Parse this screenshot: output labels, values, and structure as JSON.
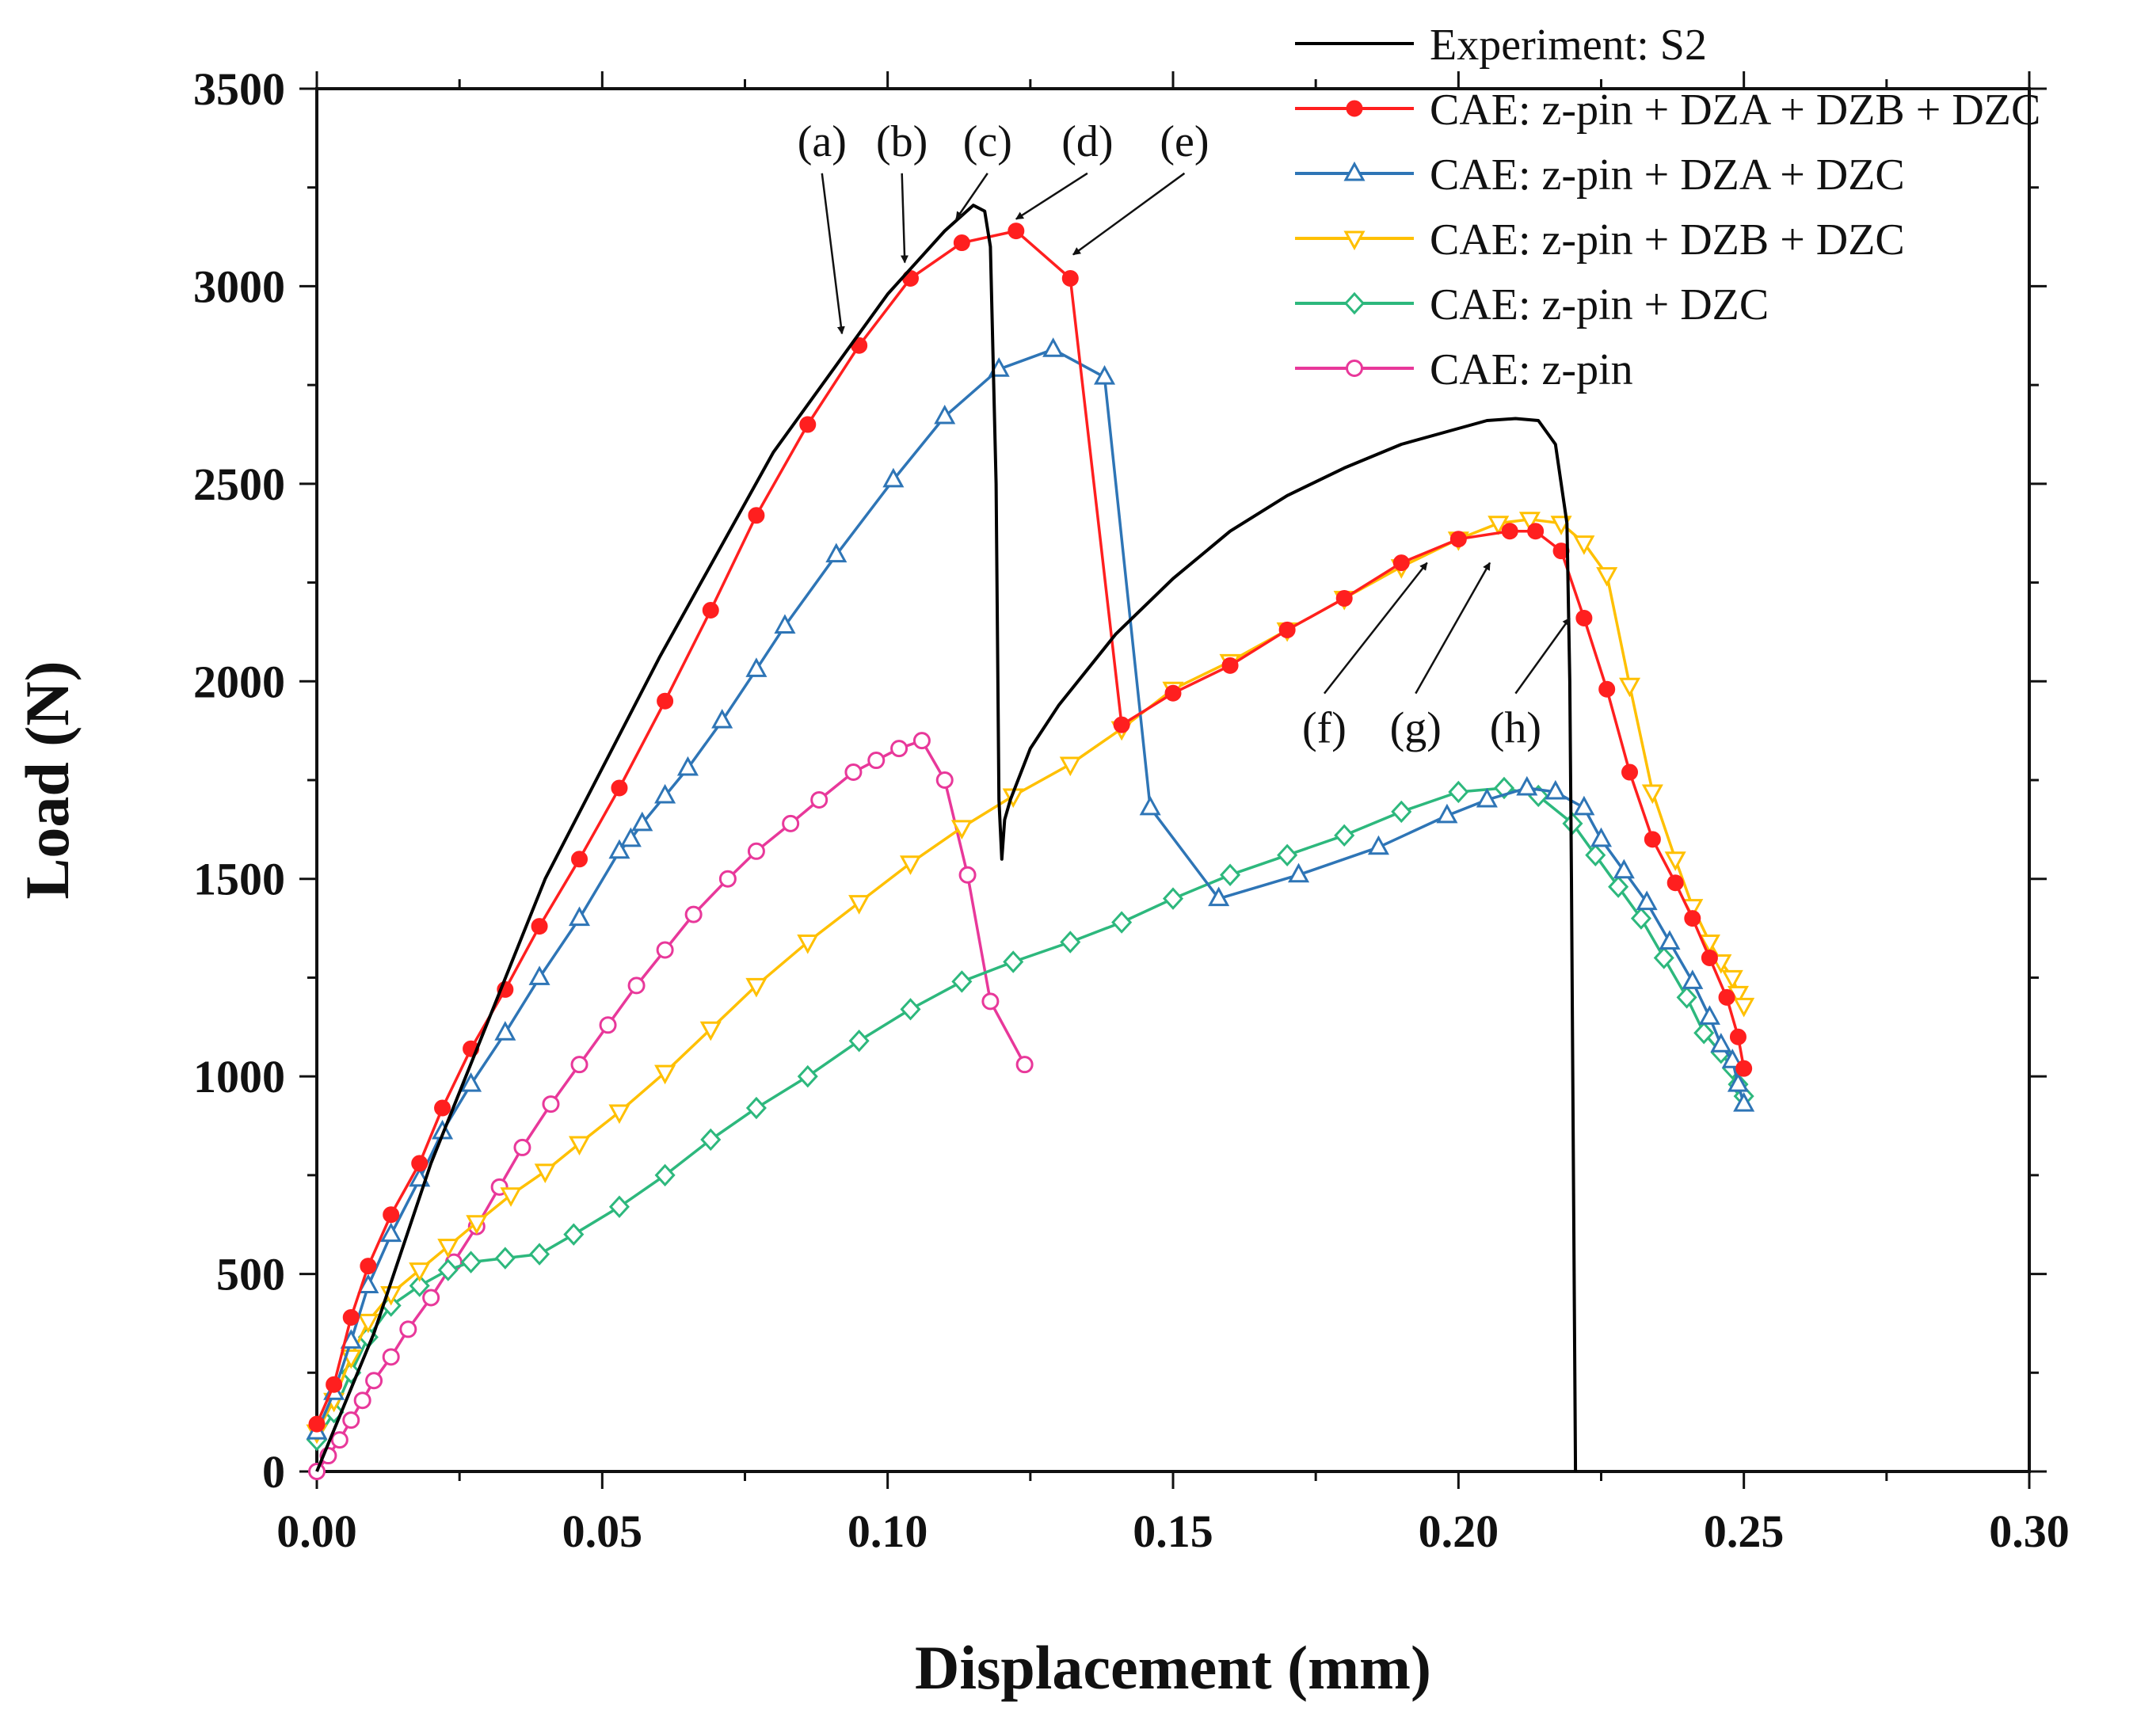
{
  "chart_data": {
    "type": "line",
    "title": "",
    "xlabel": "Displacement (mm)",
    "ylabel": "Load (N)",
    "xlim": [
      0,
      0.3
    ],
    "ylim": [
      0,
      3500
    ],
    "xticks": [
      0,
      0.05,
      0.1,
      0.15,
      0.2,
      0.25,
      0.3
    ],
    "yticks": [
      0,
      500,
      1000,
      1500,
      2000,
      2500,
      3000,
      3500
    ],
    "xtick_labels": [
      "0.00",
      "0.05",
      "0.10",
      "0.15",
      "0.20",
      "0.25",
      "0.30"
    ],
    "ytick_labels": [
      "0",
      "500",
      "1000",
      "1500",
      "2000",
      "2500",
      "3000",
      "3500"
    ],
    "grid": false,
    "legend_position": "top-right",
    "series": [
      {
        "name": "Experiment: S2",
        "color": "#000000",
        "marker": "none",
        "x": [
          0,
          0.01,
          0.02,
          0.04,
          0.06,
          0.08,
          0.1,
          0.11,
          0.115,
          0.117,
          0.118,
          0.119,
          0.1195,
          0.12,
          0.1205,
          0.1215,
          0.125,
          0.13,
          0.14,
          0.15,
          0.16,
          0.17,
          0.18,
          0.19,
          0.2,
          0.205,
          0.21,
          0.214,
          0.217,
          0.219,
          0.2195,
          0.2198,
          0.22,
          0.2205
        ],
        "y": [
          0,
          350,
          780,
          1500,
          2060,
          2580,
          2980,
          3140,
          3205,
          3190,
          3100,
          2500,
          1700,
          1550,
          1650,
          1700,
          1830,
          1940,
          2120,
          2260,
          2380,
          2470,
          2540,
          2600,
          2640,
          2660,
          2665,
          2660,
          2600,
          2400,
          2000,
          1500,
          1050,
          0
        ]
      },
      {
        "name": "CAE: z-pin + DZA + DZB + DZC",
        "color": "#ff1f1f",
        "marker": "filled-circle",
        "x": [
          0,
          0.003,
          0.006,
          0.009,
          0.013,
          0.018,
          0.022,
          0.027,
          0.033,
          0.039,
          0.046,
          0.053,
          0.061,
          0.069,
          0.077,
          0.086,
          0.095,
          0.104,
          0.113,
          0.1225,
          0.132,
          0.141,
          0.15,
          0.16,
          0.17,
          0.18,
          0.19,
          0.2,
          0.209,
          0.2135,
          0.218,
          0.222,
          0.226,
          0.23,
          0.234,
          0.238,
          0.241,
          0.244,
          0.247,
          0.249,
          0.25
        ],
        "y": [
          120,
          220,
          390,
          520,
          650,
          780,
          920,
          1070,
          1220,
          1380,
          1550,
          1730,
          1950,
          2180,
          2420,
          2650,
          2850,
          3020,
          3110,
          3140,
          3020,
          1890,
          1970,
          2040,
          2130,
          2210,
          2300,
          2360,
          2380,
          2380,
          2330,
          2160,
          1980,
          1770,
          1600,
          1490,
          1400,
          1300,
          1200,
          1100,
          1020
        ]
      },
      {
        "name": "CAE: z-pin + DZA + DZC",
        "color": "#2e75b6",
        "marker": "open-triangle-up",
        "x": [
          0,
          0.003,
          0.006,
          0.009,
          0.013,
          0.018,
          0.022,
          0.027,
          0.033,
          0.039,
          0.046,
          0.053,
          0.055,
          0.057,
          0.061,
          0.065,
          0.071,
          0.077,
          0.082,
          0.091,
          0.101,
          0.11,
          0.1195,
          0.129,
          0.138,
          0.146,
          0.158,
          0.172,
          0.186,
          0.198,
          0.205,
          0.212,
          0.217,
          0.222,
          0.225,
          0.229,
          0.233,
          0.237,
          0.241,
          0.244,
          0.246,
          0.248,
          0.249,
          0.25
        ],
        "y": [
          100,
          200,
          330,
          470,
          600,
          740,
          860,
          980,
          1110,
          1250,
          1400,
          1570,
          1600,
          1640,
          1710,
          1780,
          1900,
          2030,
          2140,
          2320,
          2510,
          2670,
          2790,
          2840,
          2770,
          1680,
          1450,
          1510,
          1580,
          1660,
          1700,
          1730,
          1720,
          1680,
          1600,
          1520,
          1440,
          1340,
          1240,
          1150,
          1080,
          1040,
          980,
          930
        ]
      },
      {
        "name": "CAE: z-pin + DZB + DZC",
        "color": "#ffc000",
        "marker": "open-triangle-down",
        "x": [
          0,
          0.003,
          0.006,
          0.009,
          0.013,
          0.018,
          0.023,
          0.028,
          0.034,
          0.04,
          0.046,
          0.053,
          0.061,
          0.069,
          0.077,
          0.086,
          0.095,
          0.104,
          0.113,
          0.122,
          0.132,
          0.141,
          0.15,
          0.16,
          0.17,
          0.18,
          0.19,
          0.2,
          0.207,
          0.2125,
          0.218,
          0.222,
          0.226,
          0.23,
          0.234,
          0.238,
          0.241,
          0.244,
          0.246,
          0.248,
          0.249,
          0.25
        ],
        "y": [
          100,
          180,
          290,
          380,
          450,
          510,
          570,
          630,
          700,
          760,
          830,
          910,
          1010,
          1120,
          1230,
          1340,
          1440,
          1540,
          1630,
          1710,
          1790,
          1880,
          1980,
          2050,
          2130,
          2210,
          2290,
          2360,
          2400,
          2410,
          2400,
          2350,
          2270,
          1990,
          1720,
          1550,
          1430,
          1340,
          1290,
          1250,
          1210,
          1180
        ]
      },
      {
        "name": "CAE: z-pin + DZC",
        "color": "#2db87d",
        "marker": "open-diamond",
        "x": [
          0,
          0.003,
          0.006,
          0.009,
          0.013,
          0.018,
          0.023,
          0.027,
          0.033,
          0.039,
          0.045,
          0.053,
          0.061,
          0.069,
          0.077,
          0.086,
          0.095,
          0.104,
          0.113,
          0.122,
          0.132,
          0.141,
          0.15,
          0.16,
          0.17,
          0.18,
          0.19,
          0.2,
          0.208,
          0.214,
          0.22,
          0.224,
          0.228,
          0.232,
          0.236,
          0.24,
          0.243,
          0.246,
          0.248,
          0.249,
          0.25
        ],
        "y": [
          80,
          150,
          250,
          340,
          420,
          470,
          510,
          530,
          540,
          550,
          600,
          670,
          750,
          840,
          920,
          1000,
          1090,
          1170,
          1240,
          1290,
          1340,
          1390,
          1450,
          1510,
          1560,
          1610,
          1670,
          1720,
          1730,
          1710,
          1640,
          1560,
          1480,
          1400,
          1300,
          1200,
          1110,
          1060,
          1020,
          980,
          950
        ]
      },
      {
        "name": "CAE: z-pin",
        "color": "#e8389a",
        "marker": "open-circle",
        "x": [
          0,
          0.002,
          0.004,
          0.006,
          0.008,
          0.01,
          0.013,
          0.016,
          0.02,
          0.024,
          0.028,
          0.032,
          0.036,
          0.041,
          0.046,
          0.051,
          0.056,
          0.061,
          0.066,
          0.072,
          0.077,
          0.083,
          0.088,
          0.094,
          0.098,
          0.102,
          0.106,
          0.11,
          0.114,
          0.118,
          0.124
        ],
        "y": [
          0,
          40,
          80,
          130,
          180,
          230,
          290,
          360,
          440,
          530,
          620,
          720,
          820,
          930,
          1030,
          1130,
          1230,
          1320,
          1410,
          1500,
          1570,
          1640,
          1700,
          1770,
          1800,
          1830,
          1850,
          1750,
          1510,
          1190,
          1030
        ]
      }
    ],
    "annotations": [
      {
        "label": "(a)",
        "x": 0.0885,
        "y": 3330,
        "arrow_to_x": 0.092,
        "arrow_to_y": 2880
      },
      {
        "label": "(b)",
        "x": 0.1025,
        "y": 3330,
        "arrow_to_x": 0.103,
        "arrow_to_y": 3060
      },
      {
        "label": "(c)",
        "x": 0.1175,
        "y": 3330,
        "arrow_to_x": 0.112,
        "arrow_to_y": 3170
      },
      {
        "label": "(d)",
        "x": 0.135,
        "y": 3330,
        "arrow_to_x": 0.1225,
        "arrow_to_y": 3170
      },
      {
        "label": "(e)",
        "x": 0.152,
        "y": 3330,
        "arrow_to_x": 0.1325,
        "arrow_to_y": 3080
      },
      {
        "label": "(f)",
        "x": 0.1765,
        "y": 1845,
        "arrow_to_x": 0.1945,
        "arrow_to_y": 2300
      },
      {
        "label": "(g)",
        "x": 0.1925,
        "y": 1845,
        "arrow_to_x": 0.2055,
        "arrow_to_y": 2300
      },
      {
        "label": "(h)",
        "x": 0.21,
        "y": 1845,
        "arrow_to_x": 0.2195,
        "arrow_to_y": 2160
      }
    ]
  }
}
